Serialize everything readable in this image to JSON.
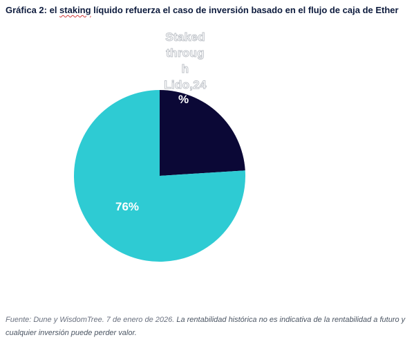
{
  "title": {
    "prefix": "Gráfica 2: el ",
    "squiggle": "staking",
    "suffix": " líquido refuerza el caso de inversión basado en el flujo de caja de Ether"
  },
  "chart_data": {
    "type": "pie",
    "slices": [
      {
        "label": "Staked through Lido",
        "value": 24,
        "display": "24%",
        "color": "#0b0836"
      },
      {
        "label": "",
        "value": 76,
        "display": "76%",
        "color": "#2ecbd3"
      }
    ],
    "start_angle_deg": 0,
    "direction": "clockwise"
  },
  "labels": {
    "dark_text": "Staked\nthroug\nh\nLido,24",
    "dark_pct": "%",
    "light_text": "76%"
  },
  "source": {
    "plain": "Fuente: Dune y WisdomTree. 7 de enero de 2026. ",
    "emph": "La rentabilidad histórica no es indicativa de la rentabilidad a futuro y cualquier inversión puede perder valor."
  }
}
